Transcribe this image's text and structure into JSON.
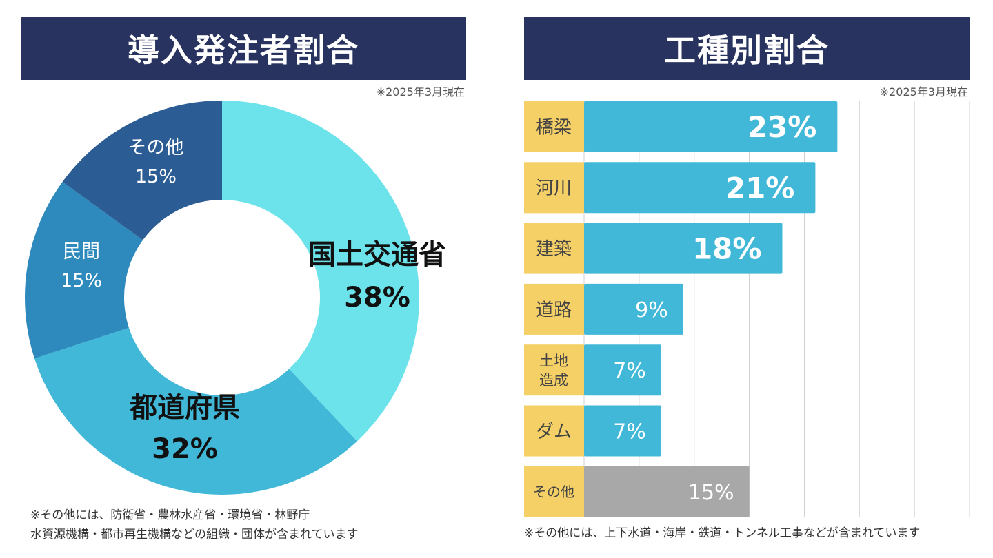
{
  "left": {
    "title": "導入発注者割合",
    "as_of": "※2025年3月現在",
    "footnote_lines": [
      "※その他には、防衛省・農林水産省・環境省・林野庁",
      "水資源機構・都市再生機構などの組織・団体が含まれています"
    ]
  },
  "right": {
    "title": "工種別割合",
    "as_of": "※2025年3月現在",
    "footnote": "※その他には、上下水道・海岸・鉄道・トンネル工事などが含まれています"
  },
  "colors": {
    "header_bg": "#29335f",
    "donut": [
      "#6ce3ea",
      "#42b8d8",
      "#2e89bd",
      "#2c5c94"
    ],
    "bar": "#42b8d8",
    "bar_other": "#a8a8a8",
    "category_bg": "#f4d067"
  },
  "chart_data": [
    {
      "type": "pie",
      "categories": [
        "国土交通省",
        "都道府県",
        "民間",
        "その他"
      ],
      "values": [
        38,
        32,
        15,
        15
      ],
      "labels": [
        "38%",
        "32%",
        "15%",
        "15%"
      ]
    },
    {
      "type": "bar",
      "orientation": "horizontal",
      "categories": [
        "橋梁",
        "河川",
        "建築",
        "道路",
        "土地造成",
        "ダム",
        "その他"
      ],
      "category_display": [
        [
          "橋梁"
        ],
        [
          "河川"
        ],
        [
          "建築"
        ],
        [
          "道路"
        ],
        [
          "土地",
          "造成"
        ],
        [
          "ダム"
        ],
        [
          "その他"
        ]
      ],
      "values": [
        23,
        21,
        18,
        9,
        7,
        7,
        15
      ],
      "labels": [
        "23%",
        "21%",
        "18%",
        "9%",
        "7%",
        "7%",
        "15%"
      ],
      "xlim": [
        0,
        35
      ],
      "grid": true
    }
  ]
}
